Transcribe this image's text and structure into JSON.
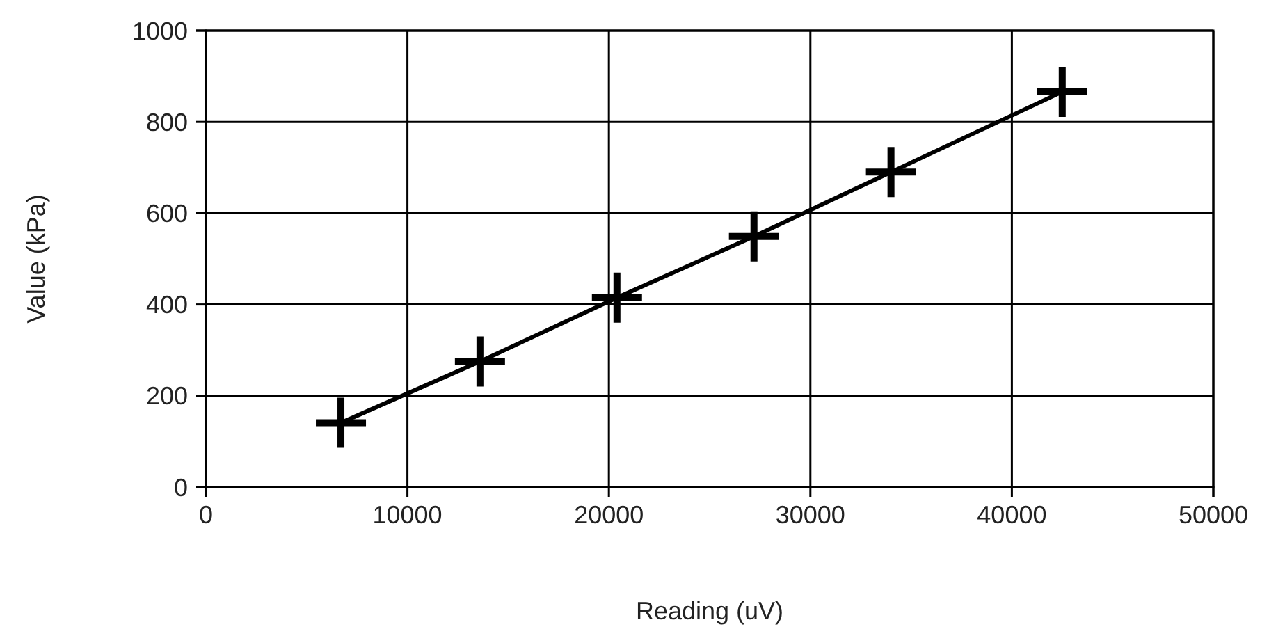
{
  "chart_data": {
    "type": "line",
    "xlabel": "Reading (uV)",
    "ylabel": "Value (kPa)",
    "x": [
      6700,
      13600,
      20400,
      27200,
      34000,
      42500
    ],
    "series": [
      {
        "color": "#000000",
        "values": [
          141,
          275,
          415,
          549,
          690,
          866
        ]
      }
    ],
    "xlim": [
      0,
      50000
    ],
    "xticks": [
      0,
      10000,
      20000,
      30000,
      40000,
      50000
    ],
    "ylim": [
      0,
      1000
    ],
    "yticks": [
      0,
      200,
      400,
      600,
      800,
      1000
    ],
    "grid": true,
    "marker": "cross",
    "line_style": "solid"
  }
}
